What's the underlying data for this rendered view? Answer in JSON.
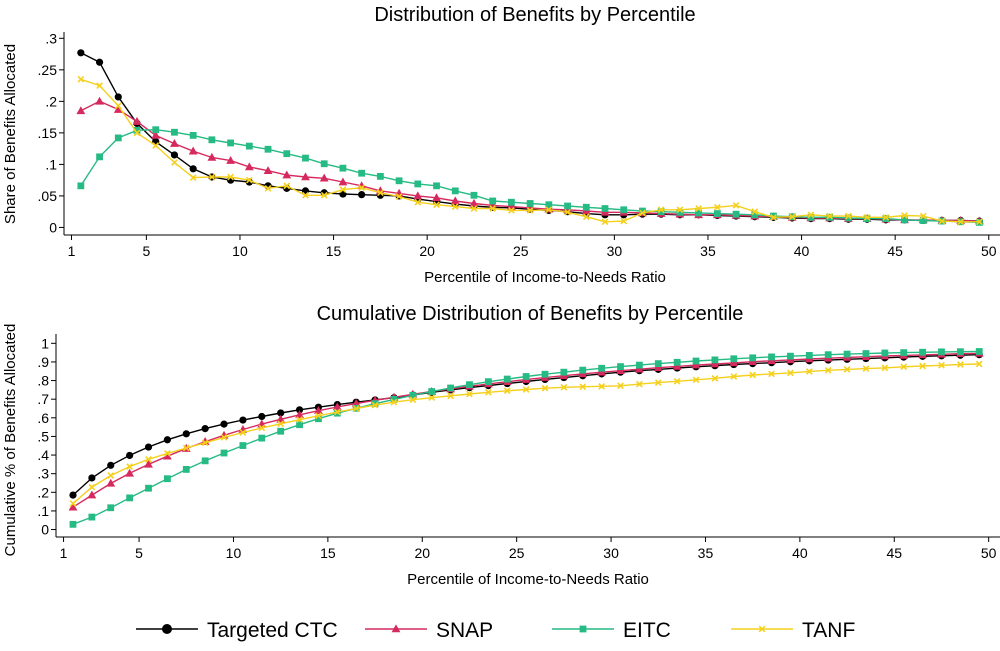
{
  "series_styles": [
    {
      "name": "Targeted CTC",
      "color": "#000000",
      "marker": "circle"
    },
    {
      "name": "SNAP",
      "color": "#d62a5e",
      "marker": "triangle"
    },
    {
      "name": "EITC",
      "color": "#26ba84",
      "marker": "square"
    },
    {
      "name": "TANF",
      "color": "#f5d01c",
      "marker": "x"
    }
  ],
  "chart_data": [
    {
      "type": "line",
      "title": "Distribution of Benefits by Percentile",
      "xlabel": "Percentile of Income-to-Needs Ratio",
      "ylabel": "Share of Benefits Allocated",
      "x": [
        1.5,
        2.5,
        3.5,
        4.5,
        5.5,
        6.5,
        7.5,
        8.5,
        9.5,
        10.5,
        11.5,
        12.5,
        13.5,
        14.5,
        15.5,
        16.5,
        17.5,
        18.5,
        19.5,
        20.5,
        21.5,
        22.5,
        23.5,
        24.5,
        25.5,
        26.5,
        27.5,
        28.5,
        29.5,
        30.5,
        31.5,
        32.5,
        33.5,
        34.5,
        35.5,
        36.5,
        37.5,
        38.5,
        39.5,
        40.5,
        41.5,
        42.5,
        43.5,
        44.5,
        45.5,
        46.5,
        47.5,
        48.5,
        49.5
      ],
      "xlim": [
        0.6,
        50.6
      ],
      "ylim": [
        -0.012,
        0.31
      ],
      "xticks": [
        1,
        5,
        10,
        15,
        20,
        25,
        30,
        35,
        40,
        45,
        50
      ],
      "xtick_labels": [
        "1",
        "5",
        "10",
        "15",
        "20",
        "25",
        "30",
        "35",
        "40",
        "45",
        "50"
      ],
      "yticks": [
        0,
        0.05,
        0.1,
        0.15,
        0.2,
        0.25,
        0.3
      ],
      "ytick_labels": [
        "0",
        ".05",
        ".1",
        ".15",
        ".2",
        ".25",
        ".3"
      ],
      "grid": false,
      "series": [
        {
          "name": "Targeted CTC",
          "values": [
            0.277,
            0.262,
            0.207,
            0.165,
            0.136,
            0.115,
            0.093,
            0.08,
            0.075,
            0.072,
            0.066,
            0.062,
            0.058,
            0.055,
            0.053,
            0.052,
            0.051,
            0.05,
            0.045,
            0.041,
            0.037,
            0.034,
            0.032,
            0.031,
            0.029,
            0.027,
            0.025,
            0.022,
            0.02,
            0.02,
            0.021,
            0.021,
            0.02,
            0.02,
            0.019,
            0.018,
            0.017,
            0.016,
            0.015,
            0.014,
            0.014,
            0.013,
            0.013,
            0.012,
            0.012,
            0.011,
            0.011,
            0.011,
            0.01
          ]
        },
        {
          "name": "SNAP",
          "values": [
            0.185,
            0.2,
            0.187,
            0.168,
            0.146,
            0.133,
            0.121,
            0.111,
            0.106,
            0.096,
            0.09,
            0.083,
            0.08,
            0.078,
            0.072,
            0.066,
            0.058,
            0.054,
            0.05,
            0.047,
            0.042,
            0.038,
            0.035,
            0.033,
            0.031,
            0.029,
            0.028,
            0.026,
            0.024,
            0.024,
            0.023,
            0.022,
            0.021,
            0.02,
            0.02,
            0.019,
            0.018,
            0.017,
            0.016,
            0.015,
            0.015,
            0.014,
            0.014,
            0.013,
            0.012,
            0.012,
            0.011,
            0.011,
            0.01
          ]
        },
        {
          "name": "EITC",
          "values": [
            0.066,
            0.112,
            0.142,
            0.154,
            0.155,
            0.151,
            0.146,
            0.139,
            0.134,
            0.129,
            0.124,
            0.117,
            0.11,
            0.101,
            0.094,
            0.086,
            0.081,
            0.074,
            0.069,
            0.066,
            0.058,
            0.051,
            0.042,
            0.04,
            0.038,
            0.036,
            0.034,
            0.032,
            0.03,
            0.028,
            0.026,
            0.025,
            0.024,
            0.023,
            0.022,
            0.021,
            0.02,
            0.018,
            0.017,
            0.016,
            0.016,
            0.015,
            0.014,
            0.014,
            0.012,
            0.011,
            0.01,
            0.009,
            0.008
          ]
        },
        {
          "name": "TANF",
          "values": [
            0.235,
            0.225,
            0.193,
            0.15,
            0.13,
            0.103,
            0.079,
            0.08,
            0.08,
            0.075,
            0.062,
            0.066,
            0.051,
            0.051,
            0.06,
            0.063,
            0.055,
            0.049,
            0.04,
            0.036,
            0.033,
            0.03,
            0.03,
            0.027,
            0.027,
            0.028,
            0.024,
            0.017,
            0.009,
            0.01,
            0.023,
            0.028,
            0.028,
            0.03,
            0.032,
            0.035,
            0.025,
            0.016,
            0.017,
            0.02,
            0.018,
            0.018,
            0.016,
            0.016,
            0.019,
            0.018,
            0.01,
            0.009,
            0.009
          ]
        }
      ]
    },
    {
      "type": "line",
      "title": "Cumulative Distribution of Benefits by Percentile",
      "xlabel": "Percentile of Income-to-Needs Ratio",
      "ylabel": "Cumulative % of Benefits Allocated",
      "x": [
        1.5,
        2.5,
        3.5,
        4.5,
        5.5,
        6.5,
        7.5,
        8.5,
        9.5,
        10.5,
        11.5,
        12.5,
        13.5,
        14.5,
        15.5,
        16.5,
        17.5,
        18.5,
        19.5,
        20.5,
        21.5,
        22.5,
        23.5,
        24.5,
        25.5,
        26.5,
        27.5,
        28.5,
        29.5,
        30.5,
        31.5,
        32.5,
        33.5,
        34.5,
        35.5,
        36.5,
        37.5,
        38.5,
        39.5,
        40.5,
        41.5,
        42.5,
        43.5,
        44.5,
        45.5,
        46.5,
        47.5,
        48.5,
        49.5
      ],
      "xlim": [
        0.6,
        50.6
      ],
      "ylim": [
        -0.04,
        1.05
      ],
      "xticks": [
        1,
        5,
        10,
        15,
        20,
        25,
        30,
        35,
        40,
        45,
        50
      ],
      "xtick_labels": [
        "1",
        "5",
        "10",
        "15",
        "20",
        "25",
        "30",
        "35",
        "40",
        "45",
        "50"
      ],
      "yticks": [
        0,
        0.1,
        0.2,
        0.3,
        0.4,
        0.5,
        0.6,
        0.7,
        0.8,
        0.9,
        1
      ],
      "ytick_labels": [
        "0",
        ".1",
        ".2",
        ".3",
        ".4",
        ".5",
        ".6",
        ".7",
        ".8",
        ".9",
        "1"
      ],
      "grid": false,
      "series": [
        {
          "name": "Targeted CTC",
          "values": [
            0.185,
            0.277,
            0.345,
            0.398,
            0.443,
            0.482,
            0.514,
            0.542,
            0.566,
            0.588,
            0.607,
            0.626,
            0.643,
            0.657,
            0.671,
            0.684,
            0.696,
            0.708,
            0.722,
            0.737,
            0.75,
            0.762,
            0.773,
            0.784,
            0.795,
            0.806,
            0.816,
            0.826,
            0.836,
            0.845,
            0.853,
            0.86,
            0.867,
            0.874,
            0.88,
            0.886,
            0.891,
            0.896,
            0.901,
            0.906,
            0.91,
            0.914,
            0.918,
            0.922,
            0.926,
            0.93,
            0.933,
            0.936,
            0.939
          ]
        },
        {
          "name": "SNAP",
          "values": [
            0.12,
            0.185,
            0.248,
            0.302,
            0.35,
            0.394,
            0.435,
            0.472,
            0.506,
            0.537,
            0.566,
            0.592,
            0.616,
            0.638,
            0.658,
            0.677,
            0.694,
            0.71,
            0.726,
            0.741,
            0.755,
            0.769,
            0.782,
            0.794,
            0.805,
            0.816,
            0.826,
            0.836,
            0.845,
            0.853,
            0.861,
            0.869,
            0.876,
            0.883,
            0.889,
            0.895,
            0.901,
            0.906,
            0.911,
            0.916,
            0.92,
            0.924,
            0.928,
            0.932,
            0.935,
            0.938,
            0.941,
            0.944,
            0.946
          ]
        },
        {
          "name": "EITC",
          "values": [
            0.028,
            0.067,
            0.117,
            0.17,
            0.222,
            0.273,
            0.323,
            0.369,
            0.411,
            0.451,
            0.491,
            0.528,
            0.563,
            0.595,
            0.625,
            0.651,
            0.676,
            0.699,
            0.721,
            0.741,
            0.76,
            0.778,
            0.794,
            0.808,
            0.822,
            0.834,
            0.845,
            0.856,
            0.866,
            0.875,
            0.883,
            0.891,
            0.898,
            0.905,
            0.911,
            0.917,
            0.922,
            0.927,
            0.931,
            0.935,
            0.939,
            0.942,
            0.945,
            0.948,
            0.95,
            0.952,
            0.954,
            0.955,
            0.956
          ]
        },
        {
          "name": "TANF",
          "values": [
            0.14,
            0.228,
            0.29,
            0.338,
            0.377,
            0.409,
            0.438,
            0.466,
            0.495,
            0.521,
            0.546,
            0.568,
            0.59,
            0.611,
            0.631,
            0.65,
            0.668,
            0.684,
            0.697,
            0.708,
            0.718,
            0.728,
            0.737,
            0.745,
            0.752,
            0.759,
            0.764,
            0.767,
            0.769,
            0.772,
            0.781,
            0.789,
            0.796,
            0.804,
            0.812,
            0.822,
            0.83,
            0.836,
            0.841,
            0.849,
            0.855,
            0.86,
            0.864,
            0.868,
            0.874,
            0.878,
            0.882,
            0.886,
            0.889
          ]
        }
      ]
    }
  ]
}
